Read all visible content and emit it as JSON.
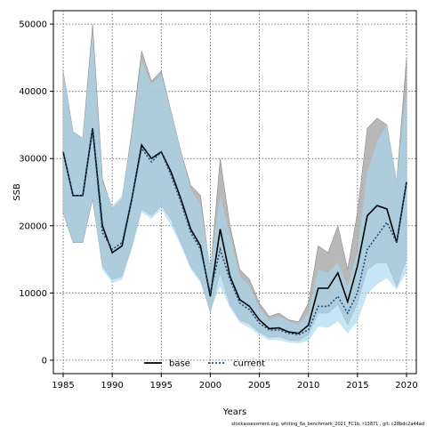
{
  "chart_data": {
    "type": "line",
    "title": "",
    "xlabel": "Years",
    "ylabel": "SSB",
    "xlim": [
      1984,
      2021
    ],
    "ylim": [
      -2000,
      52000
    ],
    "xticks": [
      1985,
      1990,
      1995,
      2000,
      2005,
      2010,
      2015,
      2020
    ],
    "yticks": [
      0,
      10000,
      20000,
      30000,
      40000,
      50000
    ],
    "grid": true,
    "legend_position": "bottom-center",
    "x": [
      1985,
      1986,
      1987,
      1988,
      1989,
      1990,
      1991,
      1992,
      1993,
      1994,
      1995,
      1996,
      1997,
      1998,
      1999,
      2000,
      2001,
      2002,
      2003,
      2004,
      2005,
      2006,
      2007,
      2008,
      2009,
      2010,
      2011,
      2012,
      2013,
      2014,
      2015,
      2016,
      2017,
      2018,
      2019,
      2020
    ],
    "series": [
      {
        "name": "base",
        "color": "#000000",
        "band_color": "#a6a6a6",
        "values": [
          31000,
          24500,
          24500,
          34500,
          20000,
          16000,
          17000,
          24000,
          32000,
          30000,
          31000,
          28000,
          24000,
          19500,
          17000,
          9500,
          19500,
          12500,
          9000,
          8000,
          6000,
          4700,
          4800,
          4200,
          4000,
          5200,
          10700,
          10700,
          13000,
          8700,
          14000,
          21500,
          23000,
          22500,
          17500,
          26500
        ],
        "lower": [
          22000,
          17500,
          17500,
          24000,
          14000,
          12000,
          12500,
          17000,
          22500,
          21500,
          23000,
          21000,
          17500,
          14000,
          12000,
          7200,
          13000,
          8300,
          6000,
          5400,
          4200,
          3400,
          3500,
          3000,
          2900,
          3800,
          7000,
          7000,
          8300,
          5300,
          8500,
          13500,
          14500,
          14500,
          11000,
          15000
        ],
        "upper": [
          43000,
          34000,
          33000,
          50000,
          27000,
          22500,
          24000,
          34000,
          46000,
          41500,
          43000,
          37000,
          31000,
          26000,
          24500,
          13000,
          30000,
          20000,
          13500,
          12000,
          8500,
          6500,
          7000,
          6000,
          5700,
          8500,
          17000,
          16000,
          20000,
          13500,
          22000,
          34500,
          36000,
          35000,
          26500,
          45000
        ]
      },
      {
        "name": "current",
        "color": "#1f4e79",
        "band_color": "#a9d8f0",
        "values": [
          31000,
          24500,
          24500,
          34500,
          19000,
          16500,
          17500,
          24000,
          31500,
          29500,
          31000,
          27500,
          23500,
          19000,
          16500,
          10000,
          16500,
          12000,
          8500,
          7500,
          5500,
          4500,
          4500,
          4000,
          3800,
          4500,
          8000,
          8000,
          9500,
          7000,
          10000,
          16500,
          18500,
          20500,
          17500,
          26500
        ],
        "lower": [
          22000,
          17500,
          17500,
          24000,
          13500,
          11500,
          12000,
          16500,
          22000,
          21000,
          22500,
          20000,
          17000,
          13500,
          11500,
          7200,
          11000,
          7800,
          5600,
          4800,
          3700,
          3000,
          3000,
          2600,
          2500,
          2900,
          5000,
          4800,
          5800,
          4000,
          5800,
          9800,
          11300,
          12200,
          10500,
          13200
        ],
        "upper": [
          43000,
          34000,
          33000,
          49000,
          26500,
          23000,
          24500,
          33500,
          44500,
          41000,
          42500,
          37000,
          31000,
          25500,
          23000,
          14000,
          24500,
          18500,
          12500,
          11000,
          7800,
          6000,
          6500,
          5800,
          5300,
          7000,
          13500,
          13000,
          14500,
          11000,
          16000,
          28000,
          32500,
          35000,
          27000,
          40000
        ]
      }
    ],
    "footer_text": "stockassessment.org, whiting_6a_benchmark_2021_FC1b, r13871 , git: c28bdc2a44ad"
  }
}
